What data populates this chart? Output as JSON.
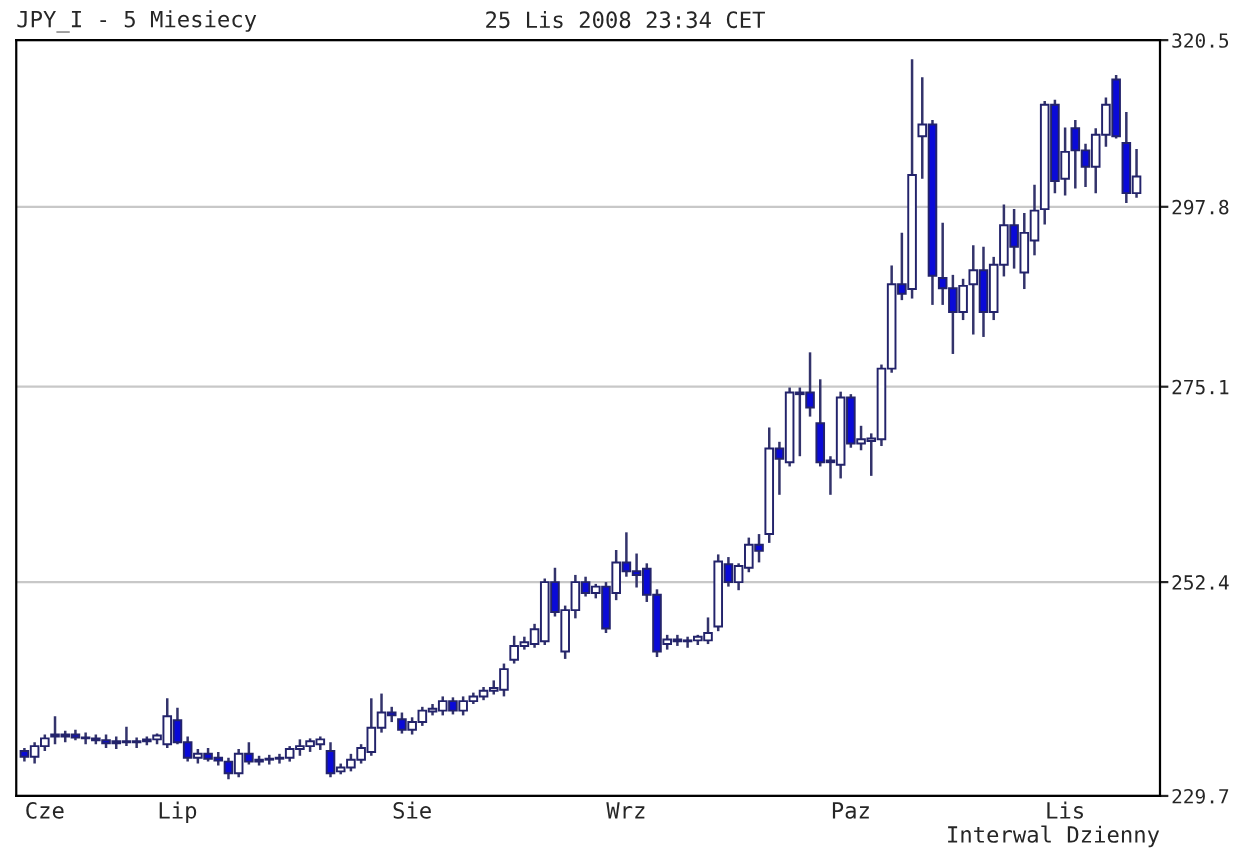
{
  "chart_data": {
    "type": "candlestick",
    "title": "JPY_I - 5 Miesiecy",
    "subtitle": "25 Lis 2008 23:34 CET",
    "annotations": [
      "Interwal Dzienny"
    ],
    "ohlc": [
      [
        234.3,
        234.6,
        233.2,
        233.7
      ],
      [
        233.7,
        235.2,
        233.0,
        234.8
      ],
      [
        234.8,
        236.0,
        234.3,
        235.6
      ],
      [
        236.0,
        237.9,
        235.0,
        235.8
      ],
      [
        235.8,
        236.4,
        235.2,
        236.0
      ],
      [
        236.0,
        236.5,
        235.4,
        235.7
      ],
      [
        235.7,
        236.2,
        235.0,
        235.6
      ],
      [
        235.6,
        236.0,
        235.0,
        235.4
      ],
      [
        235.4,
        236.0,
        234.6,
        235.1
      ],
      [
        235.1,
        235.8,
        234.5,
        235.3
      ],
      [
        235.3,
        236.8,
        234.8,
        235.2
      ],
      [
        235.2,
        235.7,
        234.6,
        235.3
      ],
      [
        235.3,
        235.8,
        234.9,
        235.5
      ],
      [
        235.5,
        236.1,
        235.0,
        235.9
      ],
      [
        235.0,
        239.8,
        234.6,
        237.9
      ],
      [
        237.5,
        238.8,
        235.0,
        235.2
      ],
      [
        235.2,
        235.8,
        233.2,
        233.6
      ],
      [
        233.6,
        234.5,
        233.0,
        234.0
      ],
      [
        234.0,
        234.6,
        233.2,
        233.5
      ],
      [
        233.6,
        234.2,
        232.8,
        233.3
      ],
      [
        233.2,
        233.6,
        231.4,
        232.0
      ],
      [
        232.0,
        234.5,
        231.6,
        234.0
      ],
      [
        234.0,
        235.2,
        232.9,
        233.2
      ],
      [
        233.2,
        233.8,
        232.8,
        233.4
      ],
      [
        233.4,
        233.9,
        232.9,
        233.5
      ],
      [
        233.5,
        234.0,
        233.0,
        233.6
      ],
      [
        233.6,
        234.8,
        233.2,
        234.5
      ],
      [
        234.5,
        235.5,
        233.8,
        234.8
      ],
      [
        234.8,
        235.6,
        234.2,
        235.3
      ],
      [
        235.0,
        235.8,
        234.4,
        235.5
      ],
      [
        234.3,
        235.2,
        231.6,
        232.0
      ],
      [
        232.2,
        233.0,
        231.9,
        232.6
      ],
      [
        232.6,
        234.0,
        232.2,
        233.4
      ],
      [
        233.4,
        235.0,
        233.0,
        234.6
      ],
      [
        234.2,
        239.8,
        233.8,
        236.7
      ],
      [
        236.7,
        240.3,
        236.2,
        238.3
      ],
      [
        238.3,
        238.9,
        237.3,
        238.0
      ],
      [
        237.6,
        238.3,
        236.1,
        236.5
      ],
      [
        236.5,
        237.8,
        236.0,
        237.3
      ],
      [
        237.3,
        238.9,
        236.9,
        238.5
      ],
      [
        238.4,
        239.2,
        238.0,
        238.7
      ],
      [
        238.5,
        240.0,
        238.0,
        239.5
      ],
      [
        239.5,
        239.9,
        238.1,
        238.5
      ],
      [
        238.5,
        240.0,
        238.0,
        239.5
      ],
      [
        239.5,
        240.4,
        239.2,
        240.0
      ],
      [
        240.0,
        241.0,
        239.6,
        240.6
      ],
      [
        240.6,
        241.7,
        240.2,
        240.9
      ],
      [
        240.7,
        243.5,
        240.0,
        242.9
      ],
      [
        243.9,
        246.5,
        243.5,
        245.4
      ],
      [
        245.4,
        246.4,
        245.0,
        245.8
      ],
      [
        245.6,
        247.8,
        245.2,
        247.2
      ],
      [
        245.9,
        252.8,
        245.5,
        252.4
      ],
      [
        252.4,
        254.0,
        248.6,
        249.1
      ],
      [
        244.8,
        249.8,
        244.0,
        249.3
      ],
      [
        249.3,
        253.2,
        248.4,
        252.4
      ],
      [
        252.4,
        253.0,
        250.8,
        251.2
      ],
      [
        251.2,
        252.2,
        250.6,
        251.9
      ],
      [
        251.9,
        252.4,
        246.8,
        247.3
      ],
      [
        251.2,
        256.0,
        250.4,
        254.6
      ],
      [
        254.6,
        258.0,
        253.0,
        253.6
      ],
      [
        253.6,
        255.6,
        251.8,
        253.2
      ],
      [
        253.9,
        254.5,
        250.2,
        251.0
      ],
      [
        251.0,
        251.6,
        244.2,
        244.8
      ],
      [
        245.6,
        246.6,
        245.0,
        246.1
      ],
      [
        246.1,
        246.6,
        245.4,
        245.9
      ],
      [
        245.9,
        246.4,
        245.2,
        246.0
      ],
      [
        246.0,
        246.6,
        245.5,
        246.4
      ],
      [
        246.0,
        248.5,
        245.6,
        246.8
      ],
      [
        247.5,
        255.5,
        247.0,
        254.7
      ],
      [
        254.4,
        255.2,
        251.9,
        252.4
      ],
      [
        252.4,
        254.5,
        251.5,
        254.2
      ],
      [
        254.0,
        257.4,
        253.5,
        256.6
      ],
      [
        256.6,
        257.8,
        254.6,
        255.9
      ],
      [
        257.8,
        270.2,
        256.8,
        267.7
      ],
      [
        267.7,
        268.5,
        262.3,
        266.5
      ],
      [
        266.1,
        275.0,
        265.6,
        274.4
      ],
      [
        274.4,
        275.0,
        266.8,
        274.2
      ],
      [
        274.4,
        279.3,
        271.5,
        272.6
      ],
      [
        270.7,
        276.0,
        265.6,
        266.1
      ],
      [
        266.1,
        266.8,
        262.3,
        266.3
      ],
      [
        265.8,
        274.5,
        264.2,
        273.8
      ],
      [
        273.8,
        274.2,
        267.8,
        268.3
      ],
      [
        268.3,
        270.4,
        267.5,
        268.8
      ],
      [
        268.6,
        269.5,
        264.5,
        268.9
      ],
      [
        268.8,
        277.8,
        268.0,
        277.3
      ],
      [
        277.3,
        290.2,
        276.8,
        287.8
      ],
      [
        287.8,
        294.4,
        285.8,
        286.6
      ],
      [
        287.2,
        317.8,
        286.0,
        302.0
      ],
      [
        307.2,
        315.3,
        301.5,
        308.8
      ],
      [
        308.8,
        309.4,
        285.2,
        288.9
      ],
      [
        288.6,
        295.7,
        285.2,
        287.3
      ],
      [
        287.3,
        289.0,
        279.1,
        284.3
      ],
      [
        284.3,
        288.5,
        283.3,
        287.6
      ],
      [
        287.8,
        292.8,
        281.5,
        289.6
      ],
      [
        289.6,
        292.6,
        281.2,
        284.3
      ],
      [
        284.3,
        291.3,
        283.3,
        290.3
      ],
      [
        290.3,
        298.1,
        288.8,
        295.4
      ],
      [
        295.4,
        297.5,
        289.8,
        292.6
      ],
      [
        289.3,
        297.0,
        287.2,
        294.4
      ],
      [
        293.4,
        300.7,
        291.5,
        297.3
      ],
      [
        297.5,
        312.0,
        295.5,
        311.5
      ],
      [
        311.5,
        312.2,
        299.6,
        301.2
      ],
      [
        301.5,
        308.4,
        299.3,
        305.1
      ],
      [
        308.3,
        309.4,
        300.2,
        305.3
      ],
      [
        305.3,
        306.2,
        300.4,
        303.1
      ],
      [
        303.1,
        308.3,
        299.6,
        307.4
      ],
      [
        307.4,
        312.5,
        305.8,
        311.5
      ],
      [
        315.0,
        315.6,
        306.9,
        307.2
      ],
      [
        306.3,
        310.5,
        298.3,
        299.6
      ],
      [
        299.6,
        305.5,
        299.0,
        301.8
      ]
    ],
    "log": true,
    "ylim": [
      229.7,
      320.5
    ],
    "yticks": [
      229.7,
      252.4,
      275.1,
      297.8,
      320.5
    ],
    "categories": [
      null,
      null,
      "Cze",
      null,
      null,
      null,
      null,
      null,
      null,
      null,
      null,
      null,
      null,
      null,
      null,
      "Lip",
      null,
      null,
      null,
      null,
      null,
      null,
      null,
      null,
      null,
      null,
      null,
      null,
      null,
      null,
      null,
      null,
      null,
      null,
      null,
      null,
      null,
      null,
      "Sie",
      null,
      null,
      null,
      null,
      null,
      null,
      null,
      null,
      null,
      null,
      null,
      null,
      null,
      null,
      null,
      null,
      null,
      null,
      null,
      null,
      "Wrz",
      null,
      null,
      null,
      null,
      null,
      null,
      null,
      null,
      null,
      null,
      null,
      null,
      null,
      null,
      null,
      null,
      null,
      null,
      null,
      null,
      null,
      "Paz",
      null,
      null,
      null,
      null,
      null,
      null,
      null,
      null,
      null,
      null,
      null,
      null,
      null,
      null,
      null,
      null,
      null,
      null,
      null,
      null,
      "Lis",
      null,
      null,
      null,
      null,
      null,
      null,
      null
    ],
    "grid": "y"
  }
}
